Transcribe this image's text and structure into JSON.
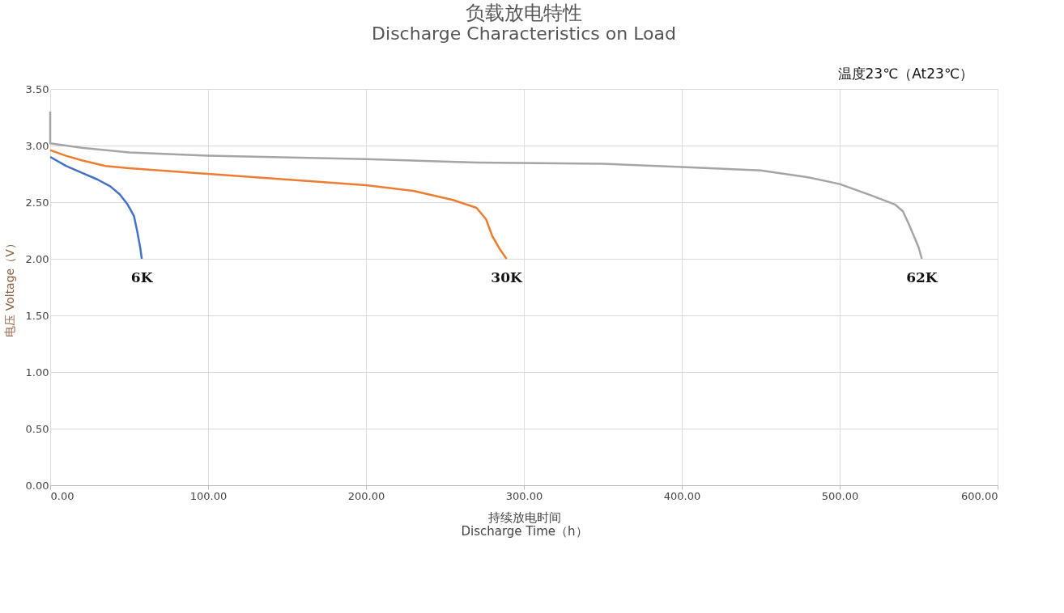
{
  "chart_data": {
    "type": "line",
    "title": "负载放电特性",
    "subtitle": "Discharge Characteristics on Load",
    "xlabel": "持续放电时间\nDischarge Time（h）",
    "ylabel": "电压 Voltage（V）",
    "annotations": [
      "温度23℃（At23℃）"
    ],
    "xlim": [
      0,
      600
    ],
    "ylim": [
      0,
      3.5
    ],
    "xticks": [
      {
        "value": 0,
        "label": "0.00"
      },
      {
        "value": 100,
        "label": "100.00"
      },
      {
        "value": 200,
        "label": "200.00"
      },
      {
        "value": 300,
        "label": "300.00"
      },
      {
        "value": 400,
        "label": "400.00"
      },
      {
        "value": 500,
        "label": "500.00"
      },
      {
        "value": 600,
        "label": "600.00"
      }
    ],
    "yticks": [
      {
        "value": 0,
        "label": "0.00"
      },
      {
        "value": 0.5,
        "label": "0.50"
      },
      {
        "value": 1,
        "label": "1.00"
      },
      {
        "value": 1.5,
        "label": "1.50"
      },
      {
        "value": 2,
        "label": "2.00"
      },
      {
        "value": 2.5,
        "label": "2.50"
      },
      {
        "value": 3,
        "label": "3.00"
      },
      {
        "value": 3.5,
        "label": "3.50"
      }
    ],
    "grid": true,
    "legend": false,
    "marker": "none",
    "line_style": "solid",
    "series": [
      {
        "name": "6K",
        "color": "#4472c4",
        "x": [
          0,
          10,
          20,
          30,
          38,
          44,
          49,
          53,
          55,
          57,
          58
        ],
        "values": [
          2.9,
          2.82,
          2.76,
          2.7,
          2.64,
          2.57,
          2.48,
          2.38,
          2.25,
          2.1,
          2.0
        ]
      },
      {
        "name": "30K",
        "color": "#ed7d31",
        "x": [
          0,
          10,
          20,
          35,
          50,
          100,
          150,
          200,
          230,
          255,
          270,
          276,
          280,
          285,
          289
        ],
        "values": [
          2.96,
          2.91,
          2.87,
          2.82,
          2.8,
          2.75,
          2.7,
          2.65,
          2.6,
          2.52,
          2.45,
          2.35,
          2.2,
          2.08,
          2.0
        ]
      },
      {
        "name": "62K",
        "color": "#a5a5a5",
        "x": [
          0,
          0,
          20,
          50,
          100,
          200,
          270,
          350,
          400,
          450,
          480,
          500,
          520,
          535,
          540,
          544,
          547,
          550,
          552
        ],
        "values": [
          3.3,
          3.02,
          2.98,
          2.94,
          2.91,
          2.88,
          2.85,
          2.84,
          2.81,
          2.78,
          2.72,
          2.66,
          2.56,
          2.48,
          2.42,
          2.3,
          2.2,
          2.1,
          2.0
        ]
      }
    ]
  }
}
